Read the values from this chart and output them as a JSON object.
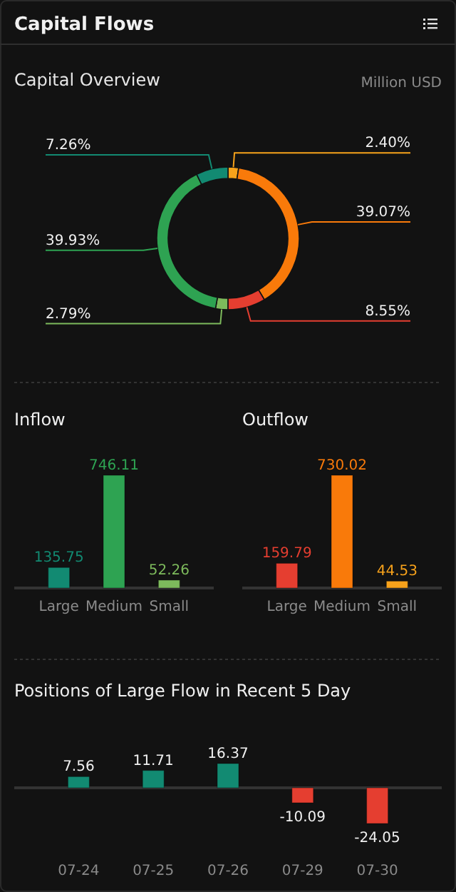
{
  "chart_data": [
    {
      "type": "donut",
      "title": "Capital Flows",
      "subtitle": "Capital Overview",
      "annotations": [
        "Million USD"
      ],
      "categories": [
        null,
        null,
        null,
        null,
        null,
        null
      ],
      "values": [
        2.4,
        39.07,
        8.55,
        2.79,
        39.93,
        7.26
      ],
      "colors": [
        "#f7a21b",
        "#f97a0a",
        "#e53e30",
        "#7dba5c",
        "#2ea352",
        "#128a72"
      ],
      "value_labels": [
        "2.40%",
        "39.07%",
        "8.55%",
        "2.79%",
        "39.93%",
        "7.26%"
      ]
    },
    {
      "type": "bar",
      "title": "Inflow",
      "categories": [
        "Large",
        "Medium",
        "Small"
      ],
      "values": [
        135.75,
        746.11,
        52.26
      ],
      "colors": [
        "#128a72",
        "#2ea352",
        "#7dba5c"
      ],
      "data_labels": true
    },
    {
      "type": "bar",
      "title": "Outflow",
      "categories": [
        "Large",
        "Medium",
        "Small"
      ],
      "values": [
        159.79,
        730.02,
        44.53
      ],
      "colors": [
        "#e53e30",
        "#f97a0a",
        "#f7a21b"
      ],
      "data_labels": true
    },
    {
      "type": "bar",
      "title": "Positions of Large Flow in Recent 5 Day",
      "categories": [
        "07-24",
        "07-25",
        "07-26",
        "07-29",
        "07-30"
      ],
      "values": [
        7.56,
        11.71,
        16.37,
        -10.09,
        -24.05
      ],
      "colors": [
        "#128a72",
        "#128a72",
        "#128a72",
        "#e53e30",
        "#e53e30"
      ],
      "data_labels": true
    }
  ]
}
